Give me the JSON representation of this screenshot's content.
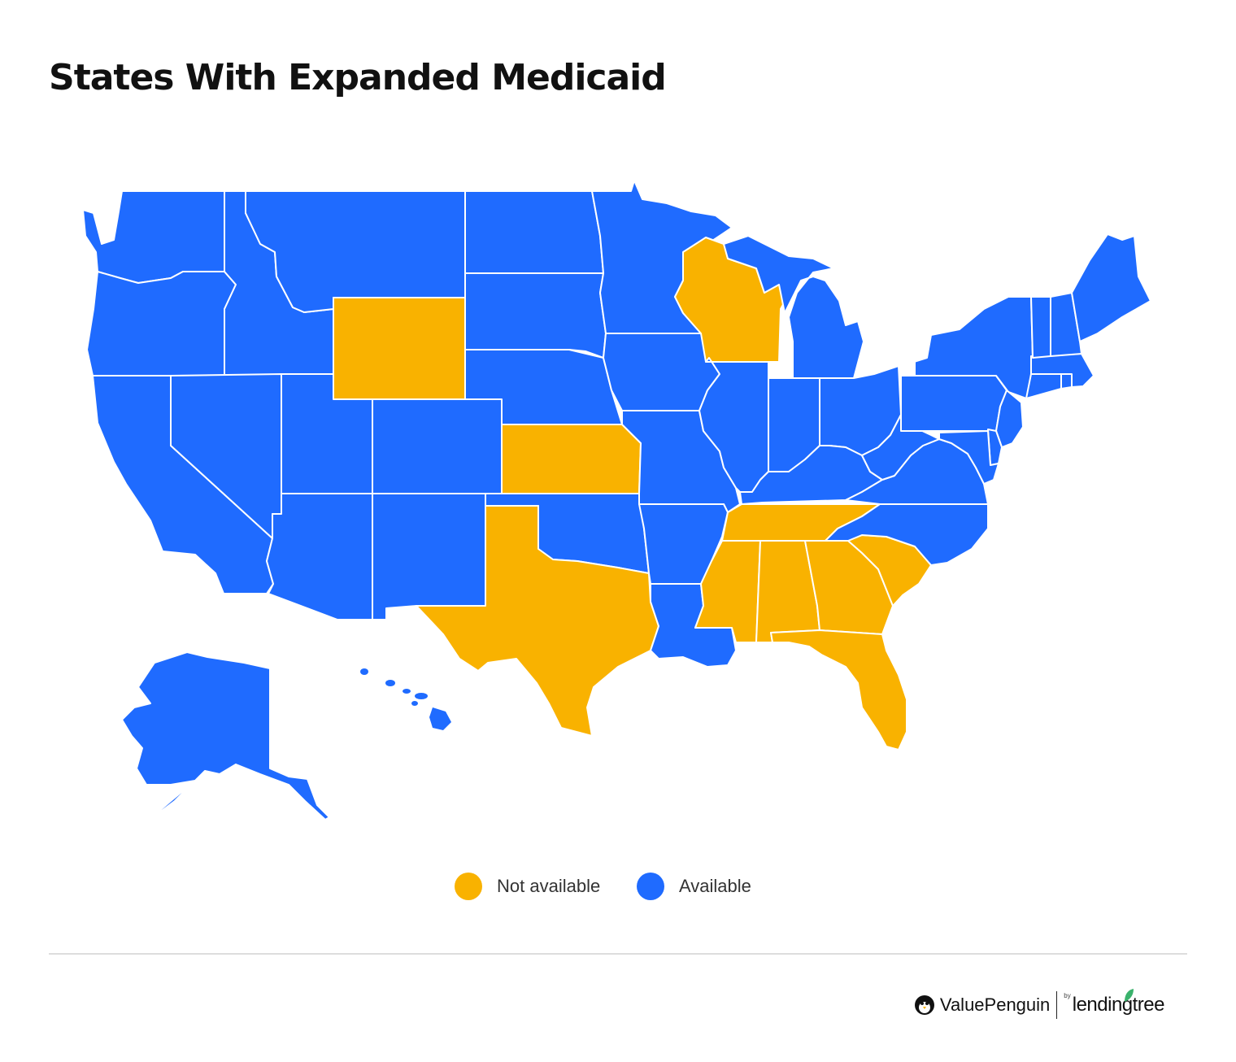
{
  "title": "States With Expanded Medicaid",
  "colors": {
    "available": "#1f6bff",
    "not_available": "#f9b200",
    "border": "#ffffff"
  },
  "legend": [
    {
      "label": "Not available",
      "status": "not_available"
    },
    {
      "label": "Available",
      "status": "available"
    }
  ],
  "brand": {
    "name": "ValuePenguin",
    "by": "by",
    "parent": "lendingtree"
  },
  "states": [
    {
      "id": "WA",
      "name": "Washington",
      "status": "available"
    },
    {
      "id": "OR",
      "name": "Oregon",
      "status": "available"
    },
    {
      "id": "CA",
      "name": "California",
      "status": "available"
    },
    {
      "id": "ID",
      "name": "Idaho",
      "status": "available"
    },
    {
      "id": "NV",
      "name": "Nevada",
      "status": "available"
    },
    {
      "id": "MT",
      "name": "Montana",
      "status": "available"
    },
    {
      "id": "WY",
      "name": "Wyoming",
      "status": "not_available"
    },
    {
      "id": "UT",
      "name": "Utah",
      "status": "available"
    },
    {
      "id": "AZ",
      "name": "Arizona",
      "status": "available"
    },
    {
      "id": "CO",
      "name": "Colorado",
      "status": "available"
    },
    {
      "id": "NM",
      "name": "New Mexico",
      "status": "available"
    },
    {
      "id": "ND",
      "name": "North Dakota",
      "status": "available"
    },
    {
      "id": "SD",
      "name": "South Dakota",
      "status": "available"
    },
    {
      "id": "NE",
      "name": "Nebraska",
      "status": "available"
    },
    {
      "id": "KS",
      "name": "Kansas",
      "status": "not_available"
    },
    {
      "id": "OK",
      "name": "Oklahoma",
      "status": "available"
    },
    {
      "id": "TX",
      "name": "Texas",
      "status": "not_available"
    },
    {
      "id": "MN",
      "name": "Minnesota",
      "status": "available"
    },
    {
      "id": "IA",
      "name": "Iowa",
      "status": "available"
    },
    {
      "id": "MO",
      "name": "Missouri",
      "status": "available"
    },
    {
      "id": "AR",
      "name": "Arkansas",
      "status": "available"
    },
    {
      "id": "LA",
      "name": "Louisiana",
      "status": "available"
    },
    {
      "id": "WI",
      "name": "Wisconsin",
      "status": "not_available"
    },
    {
      "id": "MI",
      "name": "Michigan",
      "status": "available"
    },
    {
      "id": "IL",
      "name": "Illinois",
      "status": "available"
    },
    {
      "id": "IN",
      "name": "Indiana",
      "status": "available"
    },
    {
      "id": "OH",
      "name": "Ohio",
      "status": "available"
    },
    {
      "id": "KY",
      "name": "Kentucky",
      "status": "available"
    },
    {
      "id": "TN",
      "name": "Tennessee",
      "status": "not_available"
    },
    {
      "id": "MS",
      "name": "Mississippi",
      "status": "not_available"
    },
    {
      "id": "AL",
      "name": "Alabama",
      "status": "not_available"
    },
    {
      "id": "GA",
      "name": "Georgia",
      "status": "not_available"
    },
    {
      "id": "FL",
      "name": "Florida",
      "status": "not_available"
    },
    {
      "id": "SC",
      "name": "South Carolina",
      "status": "not_available"
    },
    {
      "id": "NC",
      "name": "North Carolina",
      "status": "available"
    },
    {
      "id": "VA",
      "name": "Virginia",
      "status": "available"
    },
    {
      "id": "WV",
      "name": "West Virginia",
      "status": "available"
    },
    {
      "id": "PA",
      "name": "Pennsylvania",
      "status": "available"
    },
    {
      "id": "NY",
      "name": "New York",
      "status": "available"
    },
    {
      "id": "NJ",
      "name": "New Jersey",
      "status": "available"
    },
    {
      "id": "DE",
      "name": "Delaware",
      "status": "available"
    },
    {
      "id": "MD",
      "name": "Maryland",
      "status": "available"
    },
    {
      "id": "CT",
      "name": "Connecticut",
      "status": "available"
    },
    {
      "id": "RI",
      "name": "Rhode Island",
      "status": "available"
    },
    {
      "id": "MA",
      "name": "Massachusetts",
      "status": "available"
    },
    {
      "id": "VT",
      "name": "Vermont",
      "status": "available"
    },
    {
      "id": "NH",
      "name": "New Hampshire",
      "status": "available"
    },
    {
      "id": "ME",
      "name": "Maine",
      "status": "available"
    },
    {
      "id": "AK",
      "name": "Alaska",
      "status": "available"
    },
    {
      "id": "HI",
      "name": "Hawaii",
      "status": "available"
    }
  ]
}
